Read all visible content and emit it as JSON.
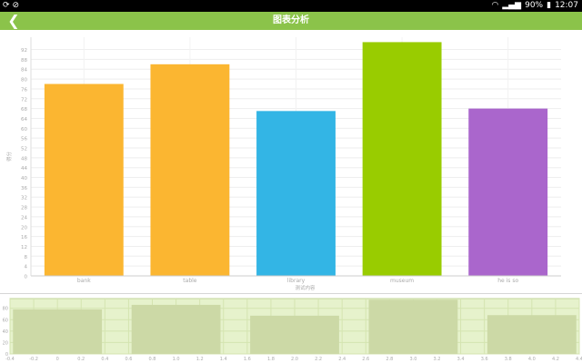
{
  "status_bar": {
    "left_icons": [
      "sync-icon",
      "blocked-icon"
    ],
    "battery": "90%",
    "time": "12:07"
  },
  "header": {
    "title": "图表分析",
    "back_icon": "chevron-left-icon"
  },
  "colors": {
    "app_bar": "#8bc34a",
    "bars": [
      "#fbb631",
      "#fbb631",
      "#33b5e5",
      "#99cc00",
      "#aa66cc"
    ],
    "navigator_bg": "#e6f2cc",
    "navigator_bar": "#ccd9a6"
  },
  "chart_data": [
    {
      "type": "bar",
      "categories": [
        "bank",
        "table",
        "library",
        "museum",
        "he is so"
      ],
      "values": [
        78,
        86,
        67,
        95,
        68
      ],
      "xlabel": "测试内容",
      "ylabel": "得分",
      "ylim": [
        0,
        97
      ],
      "yticks": [
        0,
        4,
        8,
        12,
        16,
        20,
        24,
        28,
        32,
        36,
        40,
        44,
        48,
        52,
        56,
        60,
        64,
        68,
        72,
        76,
        80,
        84,
        88,
        92
      ],
      "grid": true
    },
    {
      "type": "bar",
      "values": [
        78,
        86,
        67,
        95,
        68
      ],
      "ylim": [
        0,
        97
      ],
      "yticks": [
        0,
        20,
        40,
        60,
        80
      ],
      "xlim": [
        -0.4,
        4.4
      ],
      "xticks": [
        -0.4,
        -0.2,
        0,
        0.2,
        0.4,
        0.6,
        0.8,
        1.0,
        1.2,
        1.4,
        1.6,
        1.8,
        2.0,
        2.2,
        2.4,
        2.6,
        2.8,
        3.0,
        3.2,
        3.4,
        3.6,
        3.8,
        4.0,
        4.2,
        4.4
      ],
      "xtick_labels": [
        "-0.4",
        "-0.2",
        "0",
        "0.2",
        "0.4",
        "0.6",
        "0.8",
        "1.0",
        "1.2",
        "1.4",
        "1.6",
        "1.8",
        "2.0",
        "2.2",
        "2.4",
        "2.6",
        "2.8",
        "3.0",
        "3.2",
        "3.4",
        "3.6",
        "3.8",
        "4.0",
        "4.2",
        "4.4"
      ]
    }
  ]
}
